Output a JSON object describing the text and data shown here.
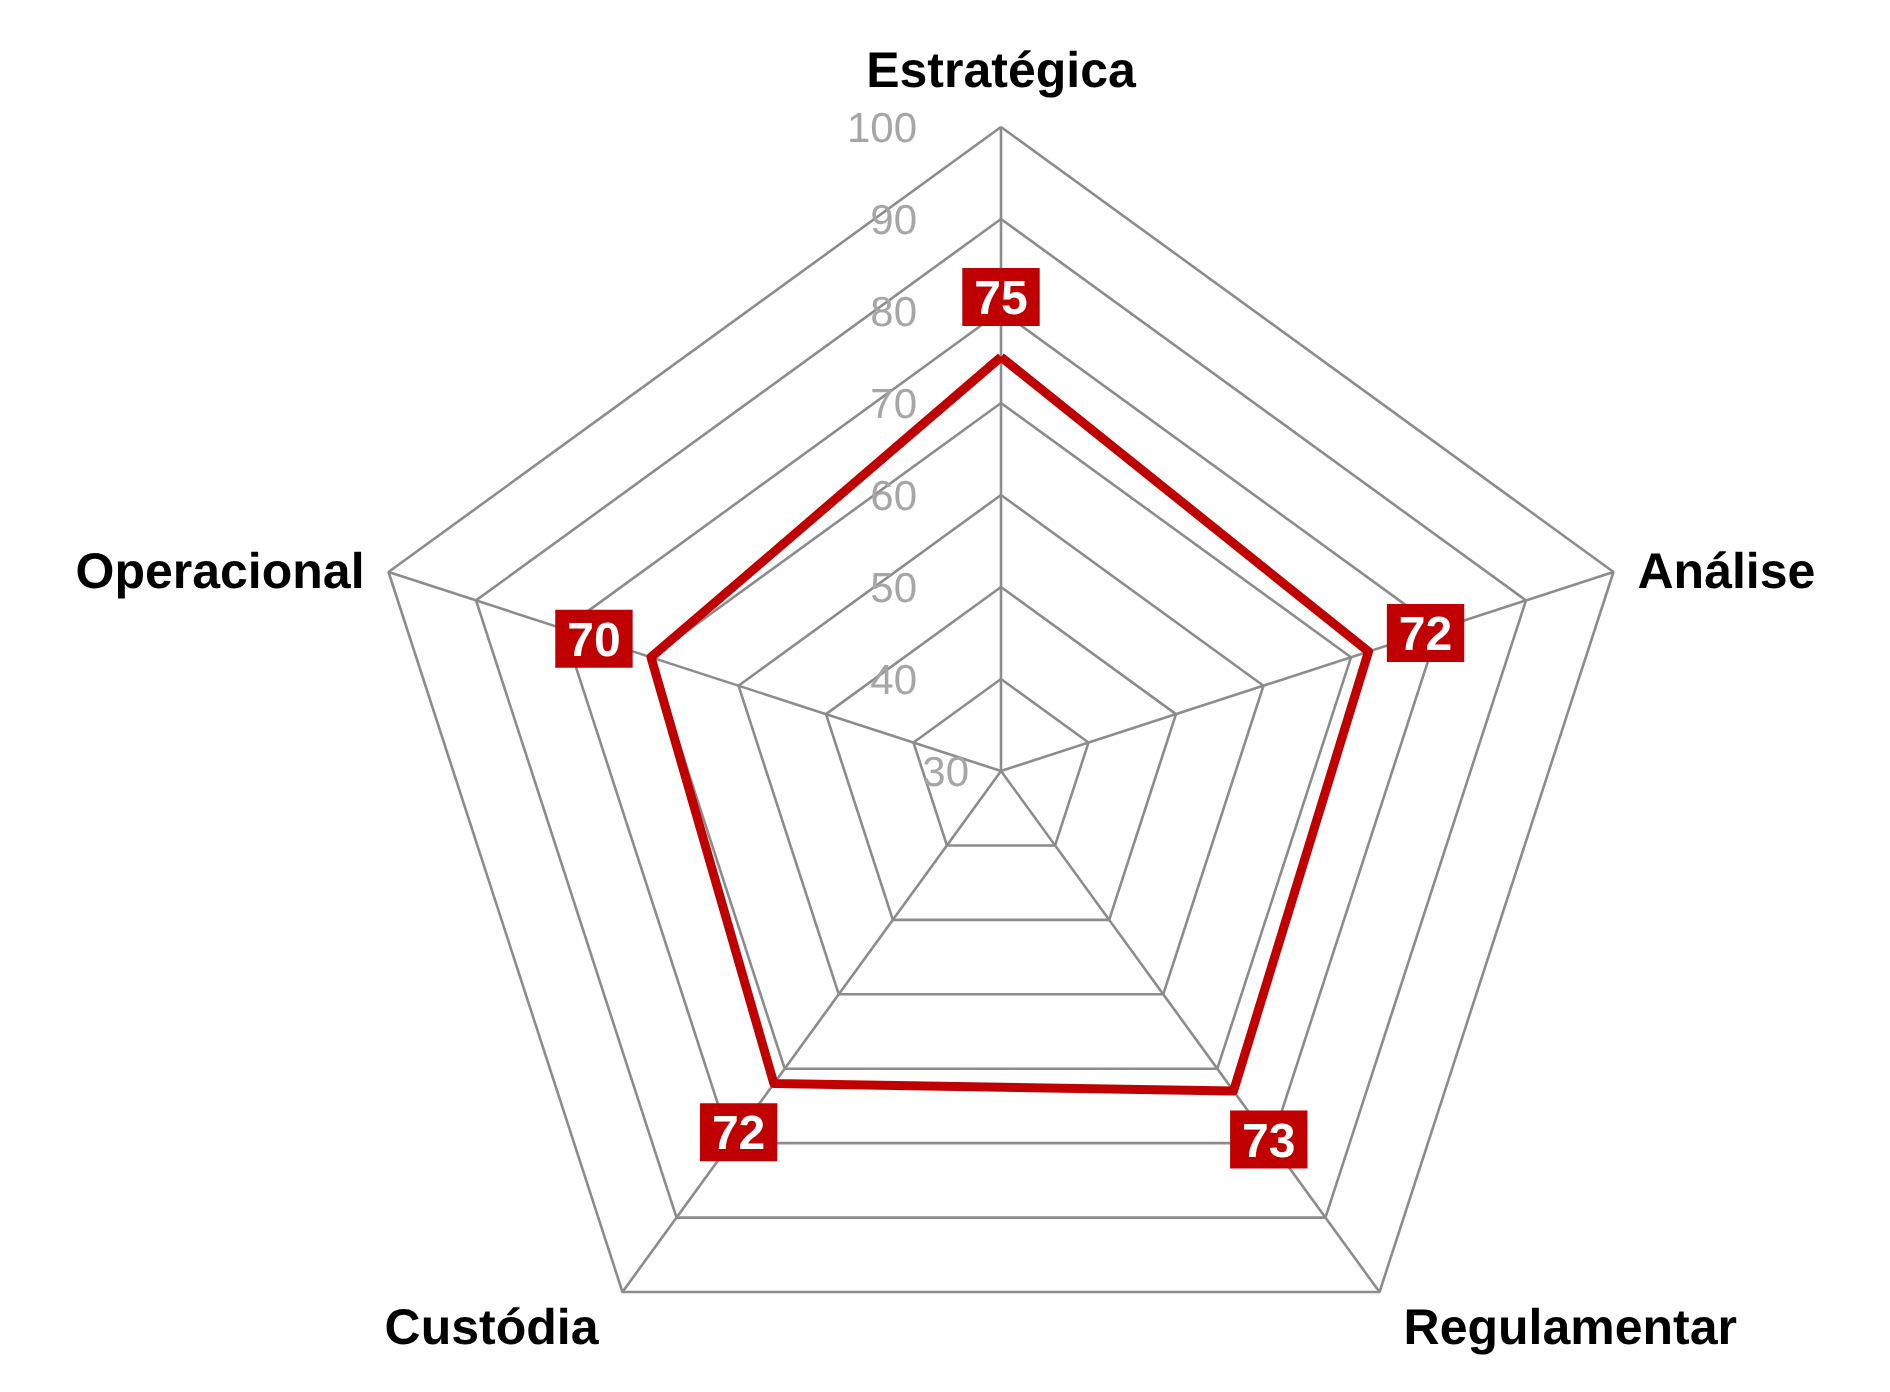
{
  "chart_data": {
    "type": "radar",
    "categories": [
      "Estratégica",
      "Análise",
      "Regulamentar",
      "Custódia",
      "Operacional"
    ],
    "series": [
      {
        "color": "#c00000",
        "values": [
          75,
          72,
          73,
          72,
          70
        ]
      }
    ],
    "ylim": [
      30,
      100
    ],
    "yticks": [
      30,
      40,
      50,
      60,
      70,
      80,
      90,
      100
    ],
    "grid": true,
    "data_labels": true
  }
}
